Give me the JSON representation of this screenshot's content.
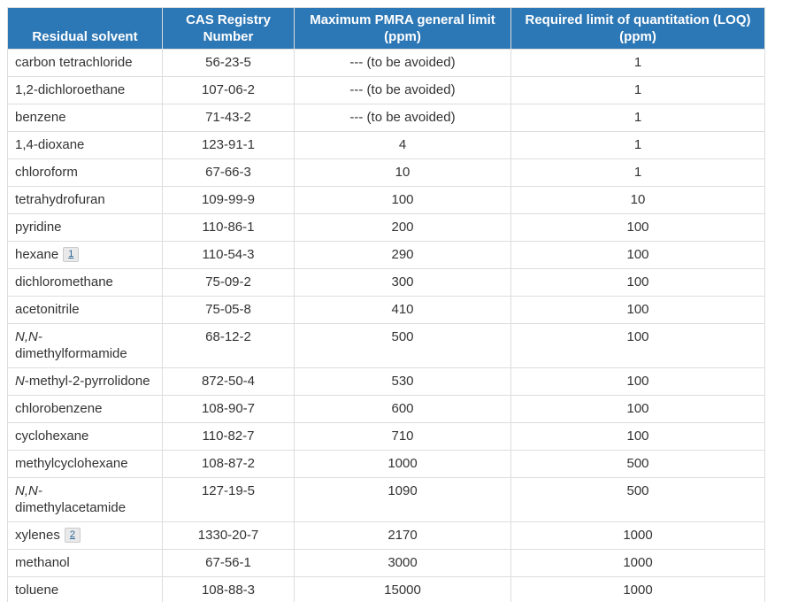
{
  "colors": {
    "header_bg": "#2c77b5",
    "header_text": "#ffffff",
    "body_text": "#333333",
    "cell_border": "#dddddd",
    "footnote_link": "#2a6496",
    "footnote_bg": "#e9e9e9",
    "footnote_border": "#cbcbcb"
  },
  "table": {
    "columns": [
      {
        "key": "solvent",
        "label": "Residual solvent"
      },
      {
        "key": "cas",
        "label": "CAS Registry Number"
      },
      {
        "key": "limit",
        "label": "Maximum PMRA general limit (ppm)"
      },
      {
        "key": "loq",
        "label": "Required limit of quantitation (LOQ) (ppm)"
      }
    ],
    "rows": [
      {
        "solvent": [
          {
            "t": "carbon tetrachloride"
          }
        ],
        "cas": "56-23-5",
        "limit": "--- (to be avoided)",
        "loq": "1"
      },
      {
        "solvent": [
          {
            "t": "1,2-dichloroethane"
          }
        ],
        "cas": "107-06-2",
        "limit": "--- (to be avoided)",
        "loq": "1"
      },
      {
        "solvent": [
          {
            "t": "benzene"
          }
        ],
        "cas": "71-43-2",
        "limit": "--- (to be avoided)",
        "loq": "1"
      },
      {
        "solvent": [
          {
            "t": "1,4-dioxane"
          }
        ],
        "cas": "123-91-1",
        "limit": "4",
        "loq": "1"
      },
      {
        "solvent": [
          {
            "t": "chloroform"
          }
        ],
        "cas": "67-66-3",
        "limit": "10",
        "loq": "1"
      },
      {
        "solvent": [
          {
            "t": "tetrahydrofuran"
          }
        ],
        "cas": "109-99-9",
        "limit": "100",
        "loq": "10"
      },
      {
        "solvent": [
          {
            "t": "pyridine"
          }
        ],
        "cas": "110-86-1",
        "limit": "200",
        "loq": "100"
      },
      {
        "solvent": [
          {
            "t": "hexane"
          }
        ],
        "footnote": "1",
        "cas": "110-54-3",
        "limit": "290",
        "loq": "100"
      },
      {
        "solvent": [
          {
            "t": "dichloromethane"
          }
        ],
        "cas": "75-09-2",
        "limit": "300",
        "loq": "100"
      },
      {
        "solvent": [
          {
            "t": "acetonitrile"
          }
        ],
        "cas": "75-05-8",
        "limit": "410",
        "loq": "100"
      },
      {
        "solvent": [
          {
            "t": "N,N-",
            "i": true
          },
          {
            "br": true
          },
          {
            "t": "dimethylformamide"
          }
        ],
        "cas": "68-12-2",
        "limit": "500",
        "loq": "100"
      },
      {
        "solvent": [
          {
            "t": "N",
            "i": true
          },
          {
            "t": "-methyl-2-pyrrolidone"
          }
        ],
        "cas": "872-50-4",
        "limit": "530",
        "loq": "100"
      },
      {
        "solvent": [
          {
            "t": "chlorobenzene"
          }
        ],
        "cas": "108-90-7",
        "limit": "600",
        "loq": "100"
      },
      {
        "solvent": [
          {
            "t": "cyclohexane"
          }
        ],
        "cas": "110-82-7",
        "limit": "710",
        "loq": "100"
      },
      {
        "solvent": [
          {
            "t": "methylcyclohexane"
          }
        ],
        "cas": "108-87-2",
        "limit": "1000",
        "loq": "500"
      },
      {
        "solvent": [
          {
            "t": "N,N-",
            "i": true
          },
          {
            "br": true
          },
          {
            "t": "dimethylacetamide"
          }
        ],
        "cas": "127-19-5",
        "limit": "1090",
        "loq": "500"
      },
      {
        "solvent": [
          {
            "t": "xylenes"
          }
        ],
        "footnote": "2",
        "cas": "1330-20-7",
        "limit": "2170",
        "loq": "1000"
      },
      {
        "solvent": [
          {
            "t": "methanol"
          }
        ],
        "cas": "67-56-1",
        "limit": "3000",
        "loq": "1000"
      },
      {
        "solvent": [
          {
            "t": "toluene"
          }
        ],
        "cas": "108-88-3",
        "limit": "15000",
        "loq": "1000"
      }
    ]
  }
}
